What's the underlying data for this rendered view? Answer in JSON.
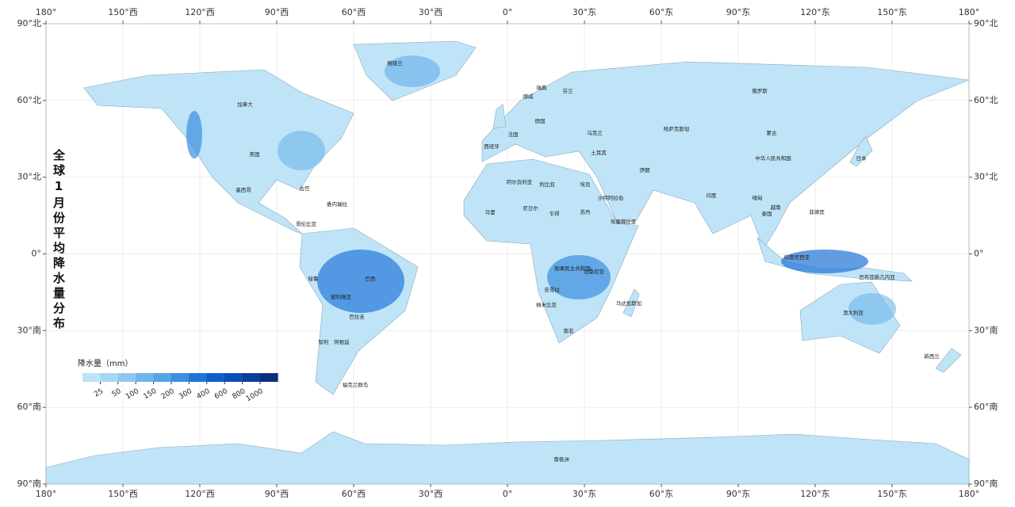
{
  "map": {
    "title": "全球1月份平均降水量分布",
    "xlim": [
      -180,
      180
    ],
    "ylim": [
      -90,
      90
    ],
    "xticks": [
      {
        "value": -180,
        "label": "180°"
      },
      {
        "value": -150,
        "label": "150°西"
      },
      {
        "value": -120,
        "label": "120°西"
      },
      {
        "value": -90,
        "label": "90°西"
      },
      {
        "value": -60,
        "label": "60°西"
      },
      {
        "value": -30,
        "label": "30°西"
      },
      {
        "value": 0,
        "label": "0°"
      },
      {
        "value": 30,
        "label": "30°东"
      },
      {
        "value": 60,
        "label": "60°东"
      },
      {
        "value": 90,
        "label": "90°东"
      },
      {
        "value": 120,
        "label": "120°东"
      },
      {
        "value": 150,
        "label": "150°东"
      },
      {
        "value": 180,
        "label": "180°"
      }
    ],
    "yticks": [
      {
        "value": 90,
        "label": "90°北"
      },
      {
        "value": 60,
        "label": "60°北"
      },
      {
        "value": 30,
        "label": "30°北"
      },
      {
        "value": 0,
        "label": "0°"
      },
      {
        "value": -30,
        "label": "30°南"
      },
      {
        "value": -60,
        "label": "60°南"
      },
      {
        "value": -90,
        "label": "90°南"
      }
    ],
    "grid": true,
    "legend": {
      "title": "降水量（mm）",
      "ticks": [
        25,
        50,
        100,
        150,
        200,
        300,
        400,
        600,
        800,
        1000
      ],
      "colors": [
        "#bde3f8",
        "#a6d6f5",
        "#8ec8f0",
        "#6fb5ea",
        "#55a3e6",
        "#3a8fe0",
        "#1f74d6",
        "#0d5ecc",
        "#0a4fb8",
        "#083f9e",
        "#0a2f80"
      ]
    },
    "labels": [
      "格陵兰",
      "加拿大",
      "美国",
      "墨西哥",
      "古巴",
      "委内瑞拉",
      "哥伦比亚",
      "秘鲁",
      "巴西",
      "玻利维亚",
      "巴拉圭",
      "智利",
      "阿根廷",
      "福克兰群岛",
      "俄罗斯",
      "蒙古",
      "中华人民共和国",
      "哈萨克斯坦",
      "印度",
      "伊朗",
      "沙特阿拉伯",
      "土耳其",
      "乌克兰",
      "瑞典",
      "芬兰",
      "挪威",
      "德国",
      "法国",
      "西班牙",
      "埃及",
      "利比亚",
      "阿尔及利亚",
      "马里",
      "尼日尔",
      "乍得",
      "苏丹",
      "埃塞俄比亚",
      "刚果民主共和国",
      "安哥拉",
      "纳米比亚",
      "南非",
      "坦桑尼亚",
      "马达加斯加",
      "缅甸",
      "泰国",
      "越南",
      "菲律宾",
      "日本",
      "印度尼西亚",
      "巴布亚新几内亚",
      "澳大利亚",
      "新西兰",
      "南极洲"
    ]
  }
}
